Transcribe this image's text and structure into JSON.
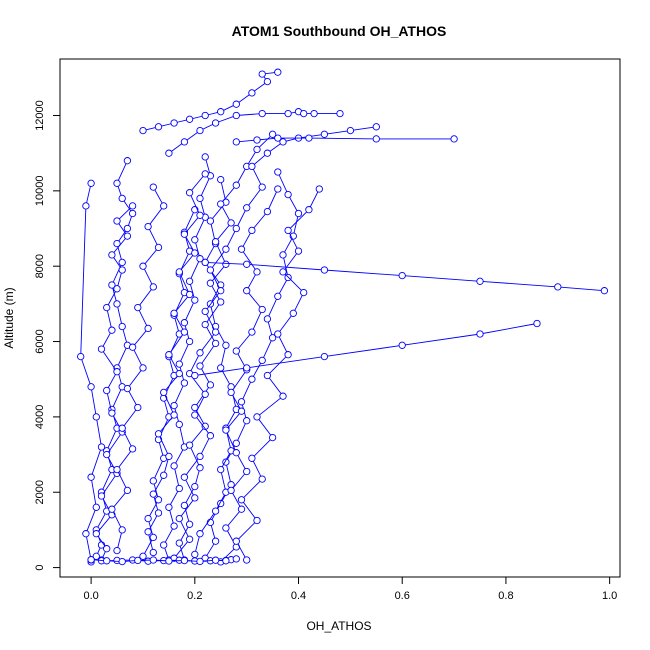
{
  "chart_data": {
    "type": "line",
    "title": "ATOM1 Southbound OH_ATHOS",
    "xlabel": "OH_ATHOS",
    "ylabel": "Altitude (m)",
    "xlim": [
      -0.06,
      1.02
    ],
    "ylim": [
      -250,
      13500
    ],
    "x_ticks": [
      0.0,
      0.2,
      0.4,
      0.6,
      0.8,
      1.0
    ],
    "x_tick_labels": [
      "0.0",
      "0.2",
      "0.4",
      "0.6",
      "0.8",
      "1.0"
    ],
    "y_ticks": [
      0,
      2000,
      4000,
      6000,
      8000,
      10000,
      12000
    ],
    "y_tick_labels": [
      "0",
      "2000",
      "4000",
      "6000",
      "8000",
      "10000",
      "12000"
    ],
    "grid": false,
    "color": "#0000ff",
    "marker": "open-circle",
    "series": [
      {
        "x": [
          0.0,
          0.01,
          0.02,
          0.01,
          0.03,
          0.02,
          0.04,
          0.03,
          0.05,
          0.04,
          0.06,
          0.05,
          0.07,
          0.06,
          0.05,
          0.04,
          0.06,
          0.05,
          0.07,
          0.08,
          0.06,
          0.05,
          0.07
        ],
        "y": [
          150,
          300,
          600,
          1000,
          1500,
          2000,
          2600,
          3100,
          3700,
          4200,
          4800,
          5300,
          5900,
          6400,
          7000,
          7500,
          8100,
          8600,
          9000,
          9400,
          9800,
          10200,
          10800
        ]
      },
      {
        "x": [
          0.02,
          0.03,
          0.01,
          0.04,
          0.02,
          0.05,
          0.03,
          0.06,
          0.04,
          0.03,
          0.05,
          0.02,
          0.04,
          0.03,
          0.05,
          0.06,
          0.04,
          0.07,
          0.05,
          0.08
        ],
        "y": [
          200,
          500,
          900,
          1400,
          1900,
          2500,
          3000,
          3600,
          4100,
          4700,
          5200,
          5800,
          6300,
          6900,
          7400,
          7900,
          8300,
          8800,
          9200,
          9600
        ]
      },
      {
        "x": [
          0.15,
          0.14,
          0.16,
          0.15,
          0.17,
          0.16,
          0.18,
          0.17,
          0.16,
          0.18,
          0.17,
          0.19,
          0.18,
          0.2,
          0.19,
          0.21,
          0.2,
          0.22,
          0.21,
          0.23,
          0.22
        ],
        "y": [
          200,
          600,
          1100,
          1600,
          2100,
          2700,
          3200,
          3800,
          4300,
          4900,
          5400,
          6000,
          6500,
          7100,
          7600,
          8200,
          8700,
          9300,
          9800,
          10400,
          10900
        ]
      },
      {
        "x": [
          0.1,
          0.12,
          0.11,
          0.13,
          0.12,
          0.14,
          0.13,
          0.15,
          0.14,
          0.16,
          0.15,
          0.17,
          0.16,
          0.18,
          0.17,
          0.19,
          0.18,
          0.2
        ],
        "y": [
          300,
          800,
          1300,
          1800,
          2300,
          2900,
          3400,
          4000,
          4500,
          5100,
          5600,
          6200,
          6700,
          7300,
          7800,
          8400,
          8900,
          9500
        ]
      },
      {
        "x": [
          0.22,
          0.24,
          0.23,
          0.25,
          0.27,
          0.26,
          0.28,
          0.3,
          0.29,
          0.31,
          0.33,
          0.35,
          0.34,
          0.36,
          0.38,
          0.37,
          0.39,
          0.4,
          0.38,
          0.36
        ],
        "y": [
          250,
          700,
          1200,
          1700,
          2200,
          2800,
          3300,
          3900,
          4400,
          5000,
          5500,
          6100,
          6600,
          7200,
          7700,
          8300,
          8800,
          9400,
          9900,
          10500
        ]
      },
      {
        "x": [
          0.2,
          0.21,
          0.24,
          0.26,
          0.25,
          0.27,
          0.26,
          0.28,
          0.27,
          0.25,
          0.26,
          0.24,
          0.23,
          0.25,
          0.22,
          0.24,
          0.23,
          0.26,
          0.25
        ],
        "y": [
          350,
          900,
          1500,
          2000,
          2600,
          3100,
          3700,
          4200,
          4800,
          5300,
          5900,
          6400,
          7000,
          7500,
          8100,
          8600,
          9200,
          9700,
          10300
        ]
      },
      {
        "x": [
          0.18,
          0.17,
          0.19,
          0.18,
          0.2,
          0.21,
          0.19,
          0.22,
          0.2,
          0.23,
          0.21,
          0.24,
          0.22,
          0.25,
          0.23,
          0.26,
          0.24,
          0.27,
          0.25,
          0.28,
          0.3,
          0.32,
          0.35
        ],
        "y": [
          200,
          650,
          1150,
          1650,
          2150,
          2650,
          3250,
          3750,
          4250,
          4850,
          5350,
          5950,
          6450,
          7050,
          7550,
          8050,
          8650,
          9150,
          9650,
          10150,
          10650,
          11100,
          11500
        ]
      },
      {
        "x": [
          0.12,
          0.11,
          0.13,
          0.12,
          0.14,
          0.15,
          0.13,
          0.16,
          0.14,
          0.17,
          0.15,
          0.18,
          0.16,
          0.19,
          0.17,
          0.2,
          0.18,
          0.21,
          0.19,
          0.22
        ],
        "y": [
          400,
          950,
          1450,
          1950,
          2450,
          2950,
          3550,
          4050,
          4650,
          5150,
          5650,
          6250,
          6750,
          7250,
          7850,
          8350,
          8850,
          9350,
          9950,
          10450
        ]
      },
      {
        "x": [
          0.25,
          0.28,
          0.26,
          0.29,
          0.27,
          0.3,
          0.28,
          0.26,
          0.29,
          0.27,
          0.3,
          0.28,
          0.31,
          0.33,
          0.3,
          0.32,
          0.29,
          0.31,
          0.34,
          0.36
        ],
        "y": [
          150,
          550,
          1050,
          1550,
          2050,
          2550,
          3050,
          3650,
          4150,
          4650,
          5250,
          5750,
          6250,
          6850,
          7350,
          7850,
          8450,
          8950,
          9450,
          10050
        ]
      },
      {
        "x": [
          0.3,
          0.28,
          0.32,
          0.29,
          0.33,
          0.31,
          0.35,
          0.32,
          0.37,
          0.34,
          0.38,
          0.36,
          0.39,
          0.41,
          0.37,
          0.4,
          0.38,
          0.42,
          0.44
        ],
        "y": [
          200,
          700,
          1250,
          1800,
          2350,
          2900,
          3450,
          4000,
          4550,
          5100,
          5650,
          6200,
          6750,
          7300,
          7850,
          8400,
          8950,
          9500,
          10050
        ]
      },
      {
        "x": [
          0.05,
          0.06,
          0.04,
          0.07,
          0.05,
          0.08,
          0.06,
          0.09,
          0.07,
          0.1,
          0.08,
          0.11,
          0.09,
          0.12,
          0.1,
          0.13,
          0.11,
          0.14,
          0.12
        ],
        "y": [
          450,
          1000,
          1550,
          2050,
          2600,
          3150,
          3700,
          4250,
          4750,
          5300,
          5850,
          6350,
          6900,
          7450,
          8000,
          8500,
          9050,
          9600,
          10100
        ]
      },
      {
        "x": [
          0.16,
          0.19,
          0.17,
          0.2,
          0.18,
          0.21,
          0.23,
          0.2,
          0.22,
          0.19,
          0.21,
          0.24,
          0.22,
          0.25,
          0.23,
          0.26,
          0.28,
          0.3,
          0.33,
          0.31,
          0.34,
          0.37,
          0.4,
          0.45,
          0.5,
          0.55
        ],
        "y": [
          250,
          750,
          1300,
          1850,
          2400,
          2950,
          3500,
          4050,
          4600,
          5150,
          5700,
          6250,
          6800,
          7350,
          7900,
          8450,
          9000,
          9550,
          10100,
          10650,
          11000,
          11300,
          11400,
          11500,
          11600,
          11700
        ]
      },
      {
        "x": [
          0.28,
          0.32,
          0.36,
          0.42,
          0.55,
          0.7
        ],
        "y": [
          11300,
          11350,
          11400,
          11400,
          11380,
          11380
        ]
      },
      {
        "x": [
          0.22,
          0.3,
          0.45,
          0.6,
          0.75,
          0.9,
          0.99
        ],
        "y": [
          8100,
          8050,
          7900,
          7750,
          7600,
          7450,
          7350
        ]
      },
      {
        "x": [
          0.2,
          0.3,
          0.45,
          0.6,
          0.75,
          0.86
        ],
        "y": [
          5100,
          5300,
          5600,
          5900,
          6200,
          6480
        ]
      },
      {
        "x": [
          0.0,
          -0.01,
          0.01,
          0.0,
          0.02,
          0.01,
          0.0,
          -0.02,
          -0.01,
          0.0
        ],
        "y": [
          200,
          900,
          1600,
          2400,
          3200,
          4000,
          4800,
          5600,
          9600,
          10200
        ]
      },
      {
        "x": [
          0.1,
          0.13,
          0.16,
          0.19,
          0.22,
          0.25,
          0.28,
          0.31,
          0.34,
          0.33,
          0.36
        ],
        "y": [
          11600,
          11700,
          11800,
          11900,
          12000,
          12100,
          12300,
          12600,
          12900,
          13100,
          13150
        ]
      },
      {
        "x": [
          0.15,
          0.18,
          0.21,
          0.24,
          0.28,
          0.33,
          0.38,
          0.4,
          0.41,
          0.43,
          0.48
        ],
        "y": [
          11000,
          11300,
          11600,
          11800,
          12000,
          12050,
          12050,
          12100,
          12050,
          12050,
          12050
        ]
      },
      {
        "x": [
          0.02,
          0.05,
          0.08,
          0.11,
          0.14,
          0.17,
          0.2,
          0.23,
          0.26,
          0.27,
          0.28
        ],
        "y": [
          180,
          190,
          200,
          170,
          185,
          195,
          175,
          180,
          190,
          210,
          230
        ]
      },
      {
        "x": [
          0.0,
          0.03,
          0.06,
          0.09,
          0.12,
          0.15,
          0.18,
          0.21,
          0.24,
          0.26
        ],
        "y": [
          210,
          180,
          160,
          190,
          200,
          175,
          185,
          165,
          195,
          180
        ]
      }
    ]
  }
}
